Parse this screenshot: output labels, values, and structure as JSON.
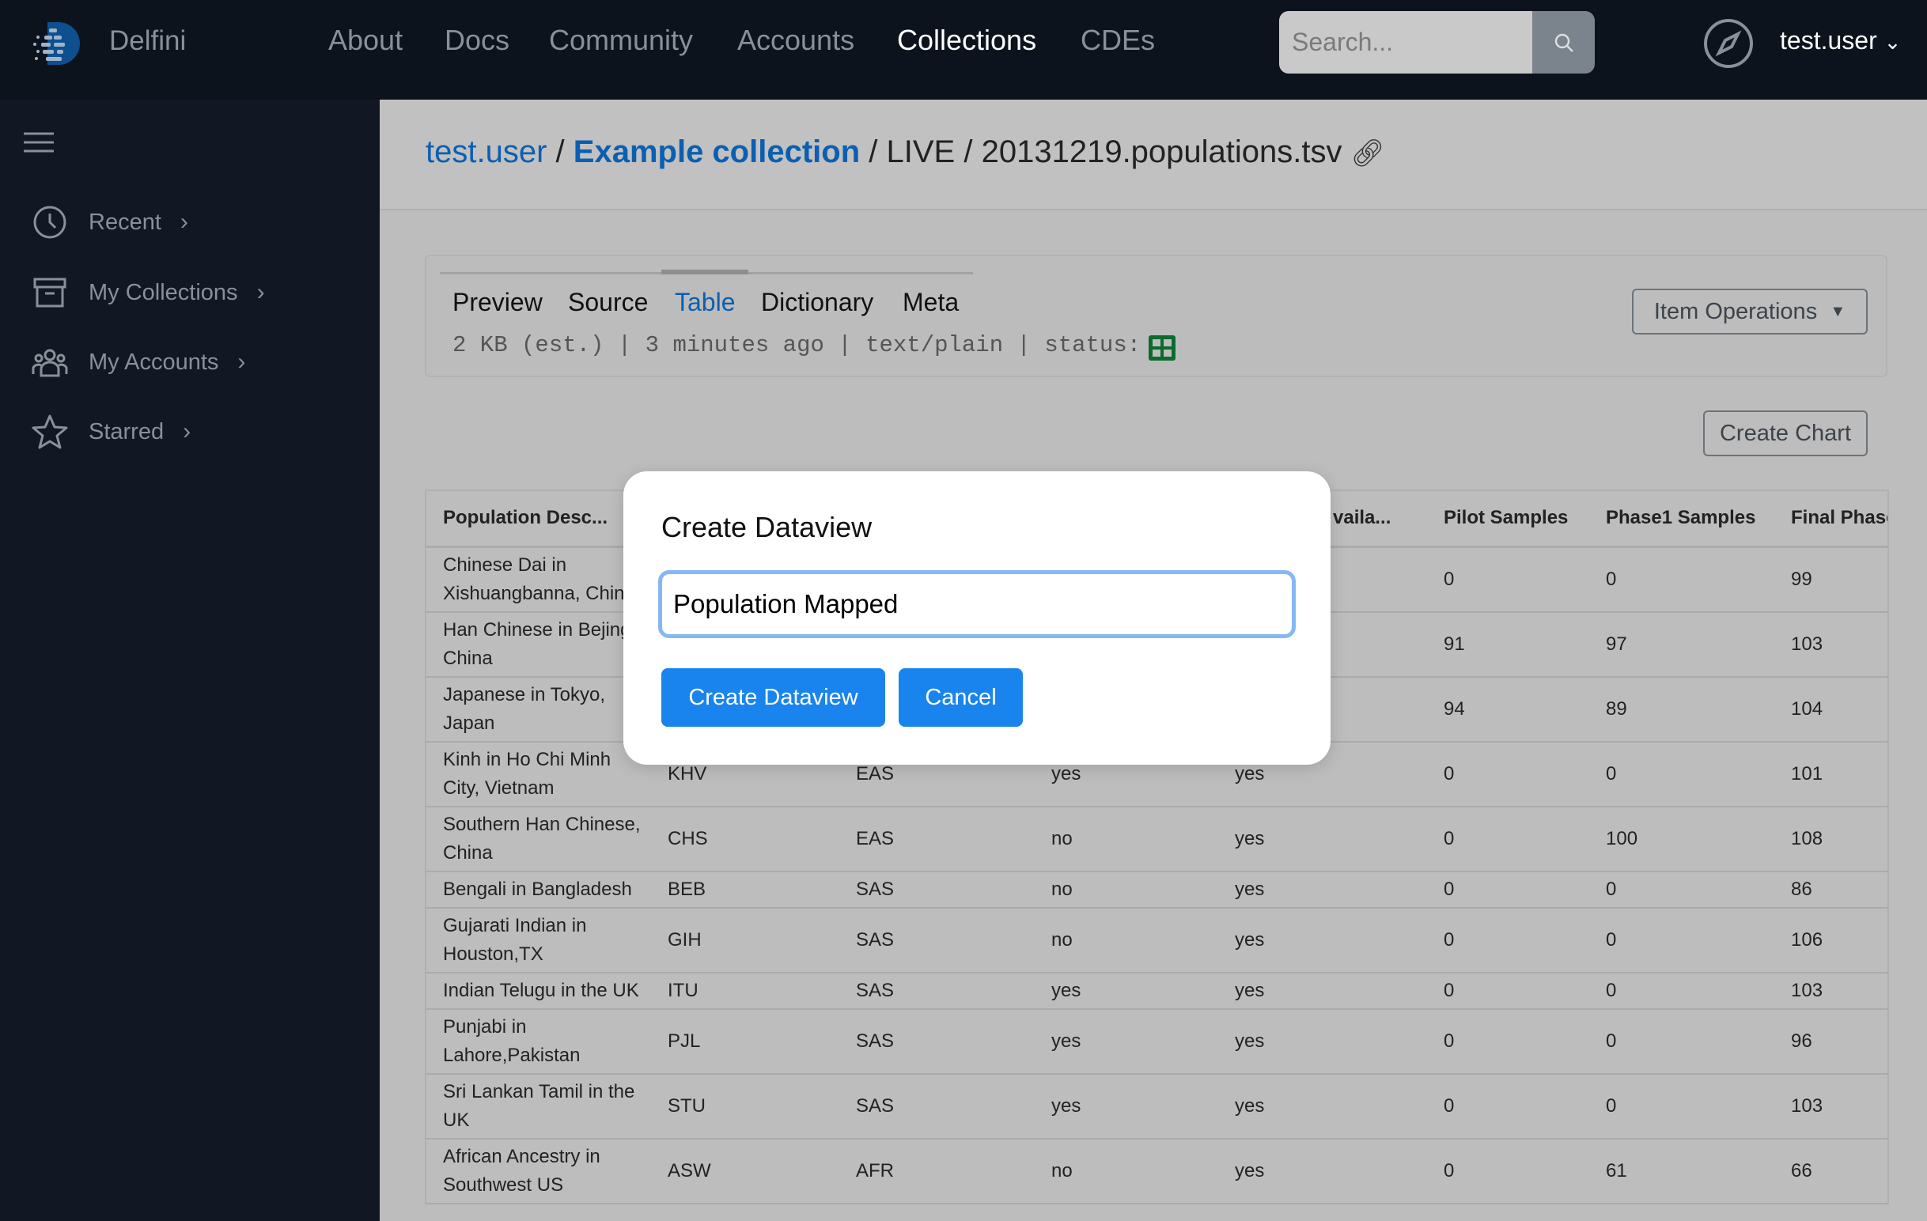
{
  "header": {
    "brand": "Delfini",
    "nav": [
      "About",
      "Docs",
      "Community",
      "Accounts",
      "Collections",
      "CDEs"
    ],
    "active_nav": "Collections",
    "search_placeholder": "Search...",
    "user": "test.user"
  },
  "sidebar": {
    "items": [
      {
        "label": "Recent",
        "icon": "clock-icon"
      },
      {
        "label": "My Collections",
        "icon": "archive-icon"
      },
      {
        "label": "My Accounts",
        "icon": "users-icon"
      },
      {
        "label": "Starred",
        "icon": "star-icon"
      }
    ]
  },
  "breadcrumb": {
    "user": "test.user",
    "collection": "Example collection",
    "stage": "LIVE",
    "file": "20131219.populations.tsv",
    "sep": "/"
  },
  "tabs": [
    "Preview",
    "Source",
    "Table",
    "Dictionary",
    "Meta"
  ],
  "active_tab": "Table",
  "meta_line": "2 KB (est.) | 3 minutes ago | text/plain | status:",
  "status_color": "#0b6b2d",
  "buttons": {
    "item_operations": "Item Operations",
    "create_chart": "Create Chart"
  },
  "table": {
    "headers": [
      "Population Desc...",
      "",
      "",
      "",
      "vaila...",
      "Pilot Samples",
      "Phase1 Samples",
      "Final Phase"
    ],
    "rows": [
      [
        "Chinese Dai in Xishuangbanna, China",
        "",
        "",
        "",
        "",
        "0",
        "0",
        "99"
      ],
      [
        "Han Chinese in Bejing, China",
        "",
        "",
        "",
        "",
        "91",
        "97",
        "103"
      ],
      [
        "Japanese in Tokyo, Japan",
        "",
        "",
        "",
        "",
        "94",
        "89",
        "104"
      ],
      [
        "Kinh in Ho Chi Minh City, Vietnam",
        "KHV",
        "EAS",
        "yes",
        "yes",
        "0",
        "0",
        "101"
      ],
      [
        "Southern Han Chinese, China",
        "CHS",
        "EAS",
        "no",
        "yes",
        "0",
        "100",
        "108"
      ],
      [
        "Bengali in Bangladesh",
        "BEB",
        "SAS",
        "no",
        "yes",
        "0",
        "0",
        "86"
      ],
      [
        "Gujarati Indian in Houston,TX",
        "GIH",
        "SAS",
        "no",
        "yes",
        "0",
        "0",
        "106"
      ],
      [
        "Indian Telugu in the UK",
        "ITU",
        "SAS",
        "yes",
        "yes",
        "0",
        "0",
        "103"
      ],
      [
        "Punjabi in Lahore,Pakistan",
        "PJL",
        "SAS",
        "yes",
        "yes",
        "0",
        "0",
        "96"
      ],
      [
        "Sri Lankan Tamil in the UK",
        "STU",
        "SAS",
        "yes",
        "yes",
        "0",
        "0",
        "103"
      ],
      [
        "African Ancestry in Southwest US",
        "ASW",
        "AFR",
        "no",
        "yes",
        "0",
        "61",
        "66"
      ]
    ]
  },
  "modal": {
    "title": "Create Dataview",
    "input_value": "Population Mapped",
    "confirm": "Create Dataview",
    "cancel": "Cancel"
  }
}
